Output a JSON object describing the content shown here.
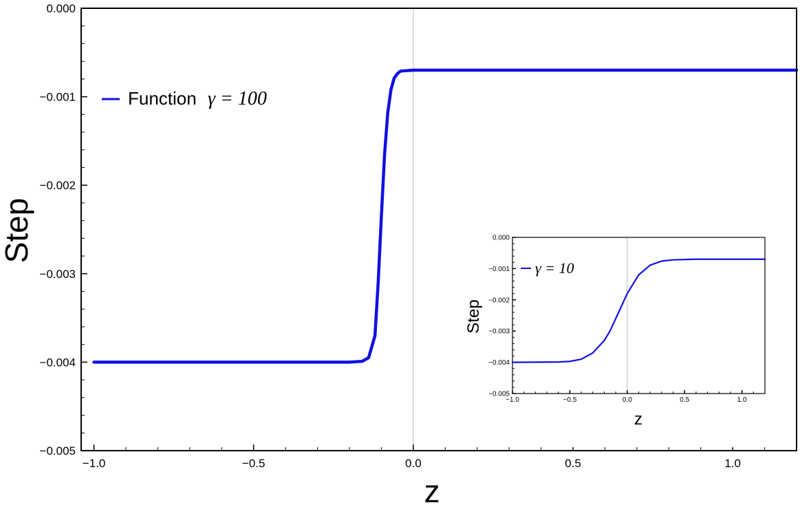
{
  "chart_data": [
    {
      "type": "line",
      "xlabel": "z",
      "ylabel": "Step",
      "xlim": [
        -1.04,
        1.2
      ],
      "ylim": [
        -0.005,
        0.0
      ],
      "xticks": [
        -1.0,
        -0.5,
        0.0,
        0.5,
        1.0
      ],
      "xtick_labels": [
        "−1.0",
        "−0.5",
        "0.0",
        "0.5",
        "1.0"
      ],
      "yticks": [
        0.0,
        -0.001,
        -0.002,
        -0.003,
        -0.004,
        -0.005
      ],
      "ytick_labels": [
        "0.000",
        "−0.001",
        "−0.002",
        "−0.003",
        "−0.004",
        "−0.005"
      ],
      "grid": false,
      "legend_position": "top-left",
      "color": "#1010e0",
      "series": [
        {
          "name": "Function γ = 100",
          "legend_text": "Function",
          "legend_math": "γ = 100",
          "gamma": 100,
          "x": [
            -1.0,
            -0.5,
            -0.2,
            -0.16,
            -0.14,
            -0.12,
            -0.11,
            -0.1,
            -0.09,
            -0.08,
            -0.07,
            -0.06,
            -0.05,
            -0.04,
            0.0,
            0.5,
            1.2
          ],
          "y": [
            -0.004,
            -0.004,
            -0.004,
            -0.00399,
            -0.00395,
            -0.0037,
            -0.0031,
            -0.00235,
            -0.00165,
            -0.00118,
            -0.00092,
            -0.00079,
            -0.00074,
            -0.00071,
            -0.0007,
            -0.0007,
            -0.0007
          ]
        }
      ]
    },
    {
      "type": "line",
      "xlabel": "z",
      "ylabel": "Step",
      "xlim": [
        -1.0,
        1.2
      ],
      "ylim": [
        -0.005,
        0.0
      ],
      "xticks": [
        -1.0,
        -0.5,
        0.0,
        0.5,
        1.0
      ],
      "xtick_labels": [
        "−1.0",
        "−0.5",
        "0.0",
        "0.5",
        "1.0"
      ],
      "yticks": [
        0.0,
        -0.001,
        -0.002,
        -0.003,
        -0.004,
        -0.005
      ],
      "ytick_labels": [
        "0.000",
        "−0.001",
        "−0.002",
        "−0.003",
        "−0.004",
        "−0.005"
      ],
      "grid": false,
      "legend_position": "top-left",
      "color": "#1010e0",
      "series": [
        {
          "name": "γ = 10",
          "legend_math": "γ = 10",
          "gamma": 10,
          "x": [
            -1.0,
            -0.6,
            -0.5,
            -0.4,
            -0.3,
            -0.2,
            -0.15,
            -0.1,
            -0.05,
            0.0,
            0.1,
            0.2,
            0.3,
            0.4,
            0.6,
            1.2
          ],
          "y": [
            -0.004,
            -0.00399,
            -0.00397,
            -0.0039,
            -0.0037,
            -0.0033,
            -0.003,
            -0.0026,
            -0.0022,
            -0.0018,
            -0.0012,
            -0.00089,
            -0.00076,
            -0.00072,
            -0.0007,
            -0.0007
          ]
        }
      ]
    }
  ]
}
